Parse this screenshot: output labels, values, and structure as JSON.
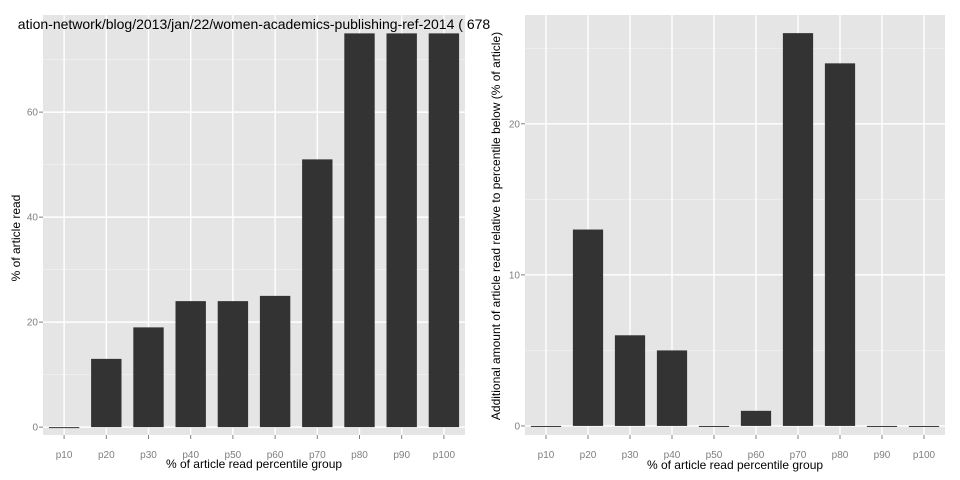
{
  "colors": {
    "panel_bg": "#e5e5e5",
    "grid_major": "#ffffff",
    "grid_minor": "#f2f2f2",
    "bar": "#333333",
    "tick_text": "#7f7f7f"
  },
  "chart_data": [
    {
      "type": "bar",
      "title": "ation-network/blog/2013/jan/22/women-academics-publishing-ref-2014 ( 678",
      "xlabel": "% of article read percentile group",
      "ylabel": "% of article read",
      "categories": [
        "p10",
        "p20",
        "p30",
        "p40",
        "p50",
        "p60",
        "p70",
        "p80",
        "p90",
        "p100"
      ],
      "values": [
        0,
        13,
        19,
        24,
        24,
        25,
        51,
        75,
        75,
        75
      ],
      "ylim": [
        -1.5,
        78.5
      ],
      "yticks": [
        0,
        20,
        40,
        60
      ],
      "grid": true
    },
    {
      "type": "bar",
      "title": "",
      "xlabel": "% of article read percentile group",
      "ylabel": "Additional amount of article read relative to percentile below (% of article)",
      "categories": [
        "p10",
        "p20",
        "p30",
        "p40",
        "p50",
        "p60",
        "p70",
        "p80",
        "p90",
        "p100"
      ],
      "values": [
        0,
        13,
        6,
        5,
        0,
        1,
        26,
        24,
        0,
        0
      ],
      "ylim": [
        -0.6,
        27.2
      ],
      "yticks": [
        0,
        10,
        20
      ],
      "grid": true
    }
  ]
}
